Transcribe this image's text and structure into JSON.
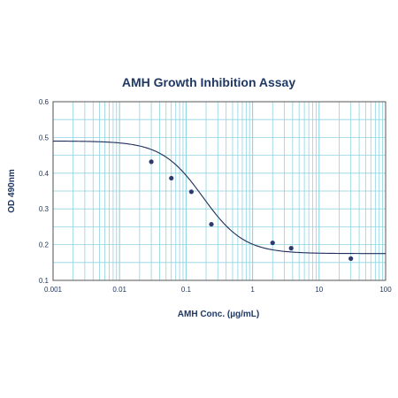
{
  "chart_data": {
    "type": "scatter",
    "title": "AMH Growth Inhibition Assay",
    "xlabel": "AMH Conc. (µg/mL)",
    "ylabel": "OD 490nm",
    "x_scale": "log",
    "xlim": [
      0.001,
      100
    ],
    "ylim": [
      0.1,
      0.6
    ],
    "x_ticks": [
      "0.001",
      "0.01",
      "0.1",
      "1",
      "10",
      "100"
    ],
    "x_tick_values": [
      0.001,
      0.01,
      0.1,
      1,
      10,
      100
    ],
    "y_ticks": [
      "0.1",
      "0.2",
      "0.3",
      "0.4",
      "0.5",
      "0.6"
    ],
    "y_tick_values": [
      0.1,
      0.2,
      0.3,
      0.4,
      0.5,
      0.6
    ],
    "grid": true,
    "legend": "none",
    "points": {
      "x": [
        0.03,
        0.06,
        0.12,
        0.24,
        2,
        3.8,
        30
      ],
      "y": [
        0.432,
        0.386,
        0.348,
        0.257,
        0.205,
        0.19,
        0.161
      ]
    },
    "fit_curve": {
      "model": "4PL",
      "top": 0.49,
      "bottom": 0.175,
      "ec50": 0.18,
      "hill": 1.4
    },
    "colors": {
      "grid": "#8fd3e0",
      "text": "#1f3864",
      "points": "#2e3a6e",
      "curve": "#1f2f5c",
      "axes": "#555555"
    }
  }
}
